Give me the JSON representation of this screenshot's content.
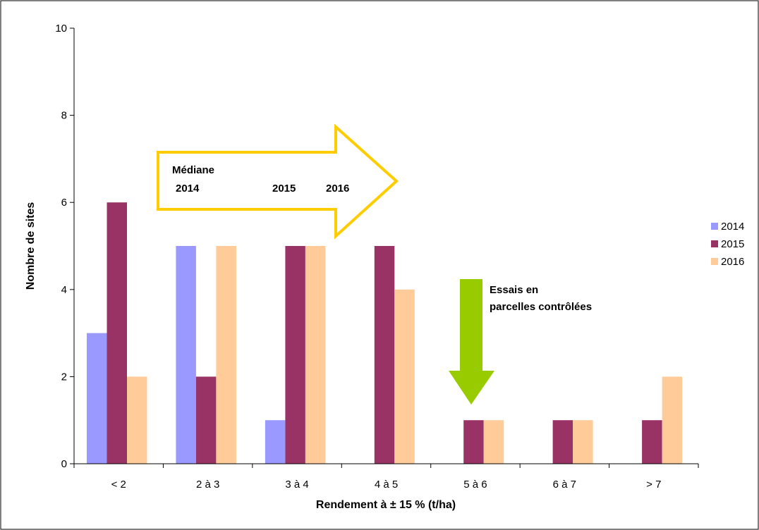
{
  "chart_data": {
    "type": "bar",
    "title": "",
    "xlabel": "Rendement à ± 15 % (t/ha)",
    "ylabel": "Nombre de sites",
    "ylim": [
      0,
      10
    ],
    "yticks": [
      0,
      2,
      4,
      6,
      8,
      10
    ],
    "grid": false,
    "legend": "right",
    "categories": [
      "< 2",
      "2 à 3",
      "3 à 4",
      "4 à 5",
      "5 à 6",
      "6 à 7",
      "> 7"
    ],
    "series": [
      {
        "name": "2014",
        "color": "#9999ff",
        "values": [
          3,
          5,
          1,
          0,
          0,
          0,
          0
        ]
      },
      {
        "name": "2015",
        "color": "#993366",
        "values": [
          6,
          2,
          5,
          5,
          1,
          1,
          1
        ]
      },
      {
        "name": "2016",
        "color": "#ffcc99",
        "values": [
          2,
          5,
          5,
          4,
          1,
          1,
          2
        ]
      }
    ],
    "annotations": {
      "median_arrow": {
        "label": "Médiane",
        "years": [
          "2014",
          "2015",
          "2016"
        ],
        "color": "#ffcc00"
      },
      "controlled_plots_arrow": {
        "lines": [
          "Essais en",
          "parcelles contrôlées"
        ],
        "color": "#99cc00"
      }
    }
  }
}
